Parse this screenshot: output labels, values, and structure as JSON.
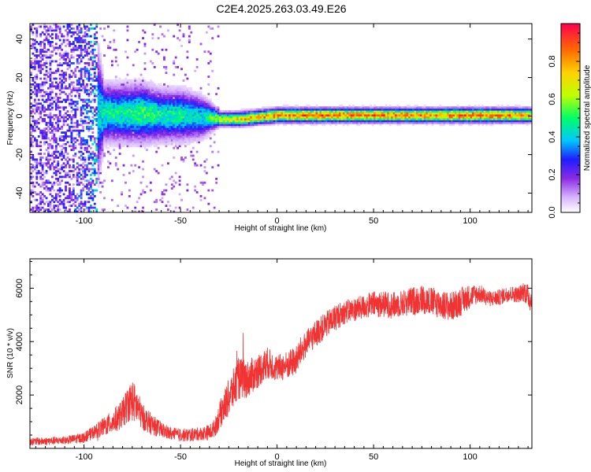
{
  "title": "C2E4.2025.263.03.49.E26",
  "colors": {
    "snr_line": "#f03434",
    "axis": "#000000",
    "background": "#ffffff"
  },
  "chart_data": [
    {
      "type": "heatmap",
      "xlabel": "Height of straight line (km)",
      "ylabel": "Frequency (Hz)",
      "xlim": [
        -128,
        132
      ],
      "ylim": [
        -50,
        48
      ],
      "xticks": [
        -100,
        -50,
        0,
        50,
        100
      ],
      "xtick_labels": [
        "-100",
        "-50",
        "0",
        "50",
        "100"
      ],
      "yticks": [
        -40,
        -20,
        0,
        20,
        40
      ],
      "ytick_labels": [
        "-40",
        "-20",
        "0",
        "20",
        "40"
      ],
      "colorbar": {
        "label": "Normalized spectral amplitude",
        "range": [
          0,
          1
        ],
        "ticks": [
          0.0,
          0.2,
          0.4,
          0.6,
          0.8
        ],
        "tick_labels": [
          "0.0",
          "0.2",
          "0.4",
          "0.6",
          "0.8"
        ]
      },
      "ridge_profile": {
        "x": [
          -128,
          -110,
          -100,
          -90,
          -80,
          -70,
          -60,
          -50,
          -40,
          -35,
          -30,
          -20,
          -10,
          0,
          20,
          40,
          60,
          80,
          100,
          120,
          132
        ],
        "center_hz": [
          0,
          0,
          1,
          1,
          1,
          1,
          0,
          0,
          -1,
          -1,
          -2,
          -2,
          -1,
          0,
          0,
          0,
          0,
          0,
          0,
          0,
          0
        ],
        "halfwidth_hz": [
          45,
          45,
          40,
          8,
          8,
          8,
          7,
          7,
          6,
          4,
          2,
          2,
          2,
          2,
          2,
          2,
          2,
          2,
          2,
          2,
          2
        ],
        "peak_amplitude": [
          0.25,
          0.25,
          0.3,
          0.5,
          0.5,
          0.55,
          0.5,
          0.5,
          0.45,
          0.55,
          0.7,
          0.8,
          0.85,
          0.9,
          0.95,
          0.9,
          0.9,
          0.9,
          0.95,
          0.9,
          0.85
        ]
      }
    },
    {
      "type": "line",
      "xlabel": "Height of straight line (km)",
      "ylabel": "SNR (10 * v/v)",
      "xlim": [
        -128,
        132
      ],
      "ylim": [
        0,
        7100
      ],
      "xticks": [
        -100,
        -50,
        0,
        50,
        100
      ],
      "xtick_labels": [
        "-100",
        "-50",
        "0",
        "50",
        "100"
      ],
      "yticks": [
        2000,
        4000,
        6000
      ],
      "ytick_labels": [
        "2000",
        "4000",
        "6000"
      ],
      "series": [
        {
          "x": [
            -128,
            -110,
            -100,
            -95,
            -90,
            -85,
            -80,
            -77,
            -75,
            -72,
            -70,
            -65,
            -60,
            -55,
            -50,
            -45,
            -40,
            -35,
            -32,
            -30,
            -28,
            -25,
            -22,
            -20,
            -15,
            -10,
            -5,
            0,
            5,
            10,
            12,
            15,
            20,
            25,
            30,
            35,
            40,
            45,
            50,
            55,
            60,
            65,
            70,
            75,
            80,
            85,
            90,
            95,
            100,
            105,
            110,
            115,
            120,
            125,
            128,
            132
          ],
          "y": [
            250,
            300,
            400,
            600,
            800,
            1000,
            1300,
            1700,
            1800,
            1500,
            1200,
            900,
            700,
            550,
            500,
            500,
            550,
            600,
            800,
            1200,
            1500,
            1900,
            2300,
            2600,
            2600,
            2900,
            3200,
            3000,
            3100,
            3300,
            3600,
            3900,
            4300,
            4600,
            4900,
            5100,
            5200,
            5300,
            5400,
            5400,
            5350,
            5450,
            5500,
            5600,
            5500,
            5400,
            5300,
            5500,
            5700,
            5800,
            5600,
            5650,
            5800,
            5750,
            5900,
            5500
          ],
          "noise": [
            150,
            150,
            200,
            250,
            350,
            450,
            550,
            700,
            800,
            650,
            500,
            400,
            300,
            250,
            250,
            250,
            250,
            300,
            350,
            500,
            600,
            700,
            800,
            800,
            700,
            650,
            600,
            500,
            550,
            550,
            550,
            500,
            500,
            500,
            500,
            450,
            450,
            450,
            500,
            500,
            500,
            500,
            550,
            550,
            550,
            550,
            550,
            550,
            450,
            350,
            300,
            300,
            300,
            300,
            400,
            500
          ]
        }
      ]
    }
  ]
}
